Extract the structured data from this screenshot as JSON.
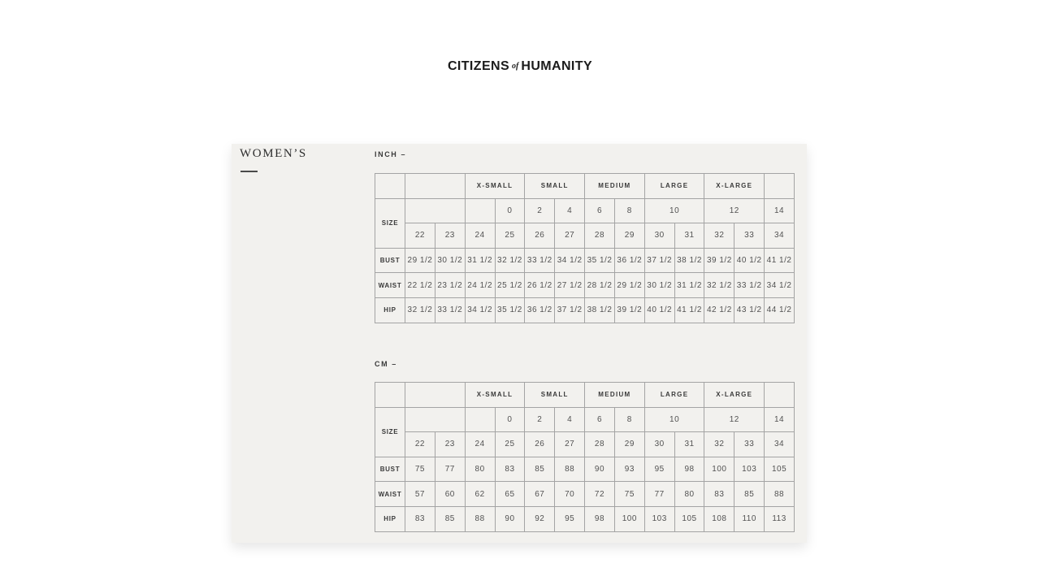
{
  "colors": {
    "page_bg": "#ffffff",
    "panel_bg": "#f2f1ee",
    "table_border": "#a4a4a4",
    "number_text": "#525252",
    "label_text": "#3a3a3a",
    "logo_text": "#1b1b1b"
  },
  "logo": {
    "citizens": "CITIZENS",
    "of": "of",
    "humanity": "HUMANITY"
  },
  "panel": {
    "sidebar": {
      "title": "WOMEN’S"
    },
    "tables": [
      {
        "unit_label": "INCH –",
        "size_label": "SIZE",
        "groups": [
          "X-SMALL",
          "SMALL",
          "MEDIUM",
          "LARGE",
          "X-LARGE"
        ],
        "numeric_sizes": [
          "0",
          "2",
          "4",
          "6",
          "8",
          "10",
          "12",
          "14"
        ],
        "inch_sizes": [
          "22",
          "23",
          "24",
          "25",
          "26",
          "27",
          "28",
          "29",
          "30",
          "31",
          "32",
          "33",
          "34"
        ],
        "measurements": [
          {
            "label": "BUST",
            "values": [
              "29 1/2",
              "30 1/2",
              "31 1/2",
              "32 1/2",
              "33 1/2",
              "34 1/2",
              "35 1/2",
              "36 1/2",
              "37 1/2",
              "38 1/2",
              "39 1/2",
              "40 1/2",
              "41 1/2"
            ]
          },
          {
            "label": "WAIST",
            "values": [
              "22 1/2",
              "23 1/2",
              "24 1/2",
              "25 1/2",
              "26 1/2",
              "27 1/2",
              "28 1/2",
              "29 1/2",
              "30 1/2",
              "31 1/2",
              "32 1/2",
              "33 1/2",
              "34 1/2"
            ]
          },
          {
            "label": "HIP",
            "values": [
              "32 1/2",
              "33 1/2",
              "34 1/2",
              "35 1/2",
              "36 1/2",
              "37 1/2",
              "38 1/2",
              "39 1/2",
              "40 1/2",
              "41 1/2",
              "42 1/2",
              "43 1/2",
              "44 1/2"
            ]
          }
        ]
      },
      {
        "unit_label": "CM –",
        "size_label": "SIZE",
        "groups": [
          "X-SMALL",
          "SMALL",
          "MEDIUM",
          "LARGE",
          "X-LARGE"
        ],
        "numeric_sizes": [
          "0",
          "2",
          "4",
          "6",
          "8",
          "10",
          "12",
          "14"
        ],
        "inch_sizes": [
          "22",
          "23",
          "24",
          "25",
          "26",
          "27",
          "28",
          "29",
          "30",
          "31",
          "32",
          "33",
          "34"
        ],
        "measurements": [
          {
            "label": "BUST",
            "values": [
              "75",
              "77",
              "80",
              "83",
              "85",
              "88",
              "90",
              "93",
              "95",
              "98",
              "100",
              "103",
              "105"
            ]
          },
          {
            "label": "WAIST",
            "values": [
              "57",
              "60",
              "62",
              "65",
              "67",
              "70",
              "72",
              "75",
              "77",
              "80",
              "83",
              "85",
              "88"
            ]
          },
          {
            "label": "HIP",
            "values": [
              "83",
              "85",
              "88",
              "90",
              "92",
              "95",
              "98",
              "100",
              "103",
              "105",
              "108",
              "110",
              "113"
            ]
          }
        ]
      }
    ]
  }
}
